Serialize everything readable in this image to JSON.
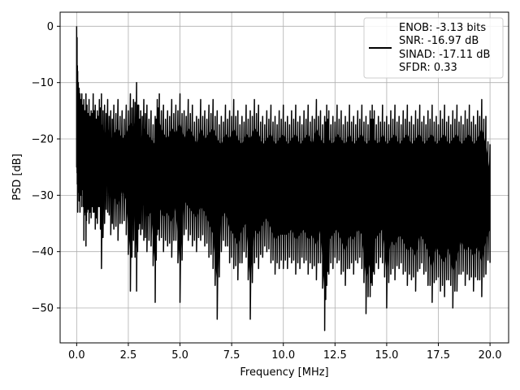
{
  "chart_data": {
    "type": "line",
    "title": "",
    "xlabel": "Frequency [MHz]",
    "ylabel": "PSD [dB]",
    "xlim": [
      -0.8,
      20.9
    ],
    "ylim": [
      -56.2,
      2.5
    ],
    "grid": true,
    "legend_position": "top-right",
    "x_ticks": [
      0.0,
      2.5,
      5.0,
      7.5,
      10.0,
      12.5,
      15.0,
      17.5,
      20.0
    ],
    "x_tick_labels": [
      "0.0",
      "2.5",
      "5.0",
      "7.5",
      "10.0",
      "12.5",
      "15.0",
      "17.5",
      "20.0"
    ],
    "y_ticks": [
      0,
      -10,
      -20,
      -30,
      -40,
      -50
    ],
    "y_tick_labels": [
      "0",
      "−10",
      "−20",
      "−30",
      "−40",
      "−50"
    ],
    "legend": {
      "line_color": "#000000",
      "lines": [
        "ENOB: -3.13 bits",
        "SNR: -16.97 dB",
        "SINAD: -17.11 dB",
        "SFDR: 0.33"
      ]
    },
    "series": [
      {
        "color": "#000000",
        "x": [
          0.0,
          0.02,
          0.05,
          0.08,
          0.12,
          0.16,
          0.2,
          0.25,
          0.3,
          0.35,
          0.4,
          0.45,
          0.5,
          0.6,
          0.7,
          0.8,
          0.9,
          1.0,
          1.1,
          1.2,
          1.35,
          1.5,
          1.65,
          1.8,
          2.0,
          2.2,
          2.4,
          2.6,
          2.75,
          2.9,
          3.0,
          3.1,
          3.25,
          3.4,
          3.6,
          3.8,
          3.9,
          4.0,
          4.2,
          4.4,
          4.6,
          4.8,
          5.0,
          5.2,
          5.4,
          5.6,
          5.8,
          6.0,
          6.2,
          6.4,
          6.6,
          6.8,
          7.0,
          7.2,
          7.4,
          7.6,
          7.8,
          8.0,
          8.2,
          8.4,
          8.6,
          8.8,
          9.0,
          9.2,
          9.4,
          9.6,
          9.8,
          10.0,
          10.2,
          10.4,
          10.6,
          10.8,
          11.0,
          11.2,
          11.4,
          11.6,
          11.8,
          12.0,
          12.1,
          12.2,
          12.4,
          12.6,
          12.8,
          13.0,
          13.2,
          13.4,
          13.6,
          13.8,
          14.0,
          14.2,
          14.3,
          14.4,
          14.6,
          14.8,
          15.0,
          15.2,
          15.4,
          15.6,
          15.8,
          16.0,
          16.2,
          16.4,
          16.6,
          16.8,
          17.0,
          17.2,
          17.4,
          17.6,
          17.8,
          18.0,
          18.2,
          18.4,
          18.6,
          18.8,
          19.0,
          19.2,
          19.4,
          19.6,
          19.8,
          20.0
        ],
        "upper": [
          0,
          -2,
          -8,
          -10,
          -11,
          -12,
          -13,
          -12,
          -14,
          -13,
          -15,
          -12,
          -14,
          -13,
          -15,
          -12,
          -14,
          -15,
          -13,
          -12,
          -14,
          -13,
          -15,
          -14,
          -13,
          -15,
          -14,
          -12,
          -13,
          -10,
          -14,
          -15,
          -13,
          -14,
          -15,
          -16,
          -13,
          -12,
          -14,
          -15,
          -13,
          -14,
          -12,
          -15,
          -13,
          -14,
          -16,
          -13,
          -15,
          -14,
          -13,
          -15,
          -16,
          -14,
          -15,
          -13,
          -15,
          -16,
          -14,
          -15,
          -13,
          -14,
          -16,
          -15,
          -14,
          -16,
          -15,
          -14,
          -16,
          -15,
          -14,
          -16,
          -15,
          -14,
          -16,
          -13,
          -15,
          -16,
          -14,
          -15,
          -16,
          -14,
          -15,
          -16,
          -14,
          -16,
          -15,
          -14,
          -16,
          -15,
          -14,
          -15,
          -16,
          -14,
          -16,
          -15,
          -14,
          -16,
          -15,
          -14,
          -16,
          -15,
          -14,
          -16,
          -15,
          -14,
          -16,
          -15,
          -14,
          -16,
          -15,
          -14,
          -16,
          -15,
          -14,
          -16,
          -15,
          -13,
          -16,
          -21
        ],
        "lower": [
          -25,
          -26,
          -33,
          -29,
          -31,
          -33,
          -30,
          -32,
          -29,
          -38,
          -31,
          -39,
          -33,
          -35,
          -34,
          -33,
          -36,
          -35,
          -32,
          -43,
          -35,
          -33,
          -37,
          -36,
          -38,
          -35,
          -37,
          -47,
          -38,
          -47,
          -36,
          -37,
          -38,
          -40,
          -39,
          -49,
          -37,
          -38,
          -40,
          -39,
          -41,
          -38,
          -49,
          -37,
          -38,
          -39,
          -40,
          -38,
          -39,
          -41,
          -43,
          -52,
          -40,
          -39,
          -42,
          -43,
          -45,
          -42,
          -41,
          -52,
          -42,
          -43,
          -41,
          -40,
          -42,
          -44,
          -43,
          -43,
          -43,
          -42,
          -44,
          -43,
          -42,
          -44,
          -43,
          -45,
          -42,
          -54,
          -46,
          -44,
          -43,
          -42,
          -44,
          -46,
          -43,
          -44,
          -42,
          -43,
          -51,
          -48,
          -46,
          -44,
          -43,
          -42,
          -50,
          -44,
          -45,
          -43,
          -44,
          -46,
          -45,
          -47,
          -43,
          -44,
          -46,
          -49,
          -45,
          -47,
          -48,
          -45,
          -50,
          -47,
          -44,
          -46,
          -45,
          -47,
          -45,
          -48,
          -44,
          -42
        ]
      }
    ]
  }
}
